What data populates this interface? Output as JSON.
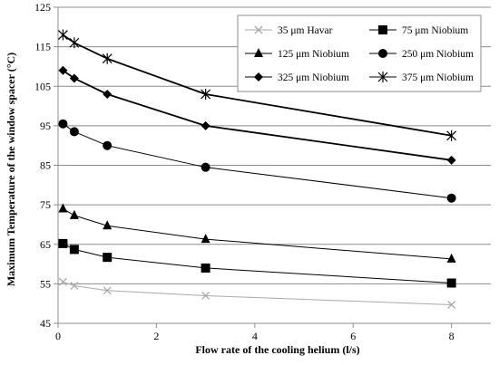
{
  "chart_data": {
    "type": "line",
    "title": "",
    "xlabel": "Flow rate of the cooling helium (l/s)",
    "ylabel": "Maximum Temperature  of the window spacer (°C)",
    "xlim": [
      0,
      8.8
    ],
    "ylim": [
      45,
      125
    ],
    "x_ticks": [
      0,
      2,
      4,
      6,
      8
    ],
    "y_ticks": [
      45,
      55,
      65,
      75,
      85,
      95,
      105,
      115,
      125
    ],
    "grid": "horizontal",
    "legend_position": "top-right",
    "x": [
      0.1,
      0.33,
      1,
      3,
      8
    ],
    "series": [
      {
        "name": "35 μm Havar",
        "marker": "x",
        "color": "#aaaaaa",
        "values": [
          55.5,
          54.5,
          53.3,
          52.0,
          49.7
        ]
      },
      {
        "name": "75 μm Niobium",
        "marker": "square",
        "color": "#000000",
        "values": [
          65.2,
          63.7,
          61.7,
          59.0,
          55.2
        ]
      },
      {
        "name": "125 μm Niobium",
        "marker": "triangle",
        "color": "#000000",
        "values": [
          74.0,
          72.3,
          69.7,
          66.3,
          61.3
        ]
      },
      {
        "name": "250 μm Niobium",
        "marker": "circle",
        "color": "#000000",
        "values": [
          95.5,
          93.5,
          90.0,
          84.5,
          76.7
        ]
      },
      {
        "name": "325 μm Niobium",
        "marker": "diamond",
        "color": "#000000",
        "values": [
          109.0,
          107.0,
          103.0,
          95.0,
          86.3
        ]
      },
      {
        "name": "375 μm Niobium",
        "marker": "star",
        "color": "#000000",
        "values": [
          118.0,
          116.0,
          112.0,
          103.0,
          92.5
        ]
      }
    ]
  }
}
